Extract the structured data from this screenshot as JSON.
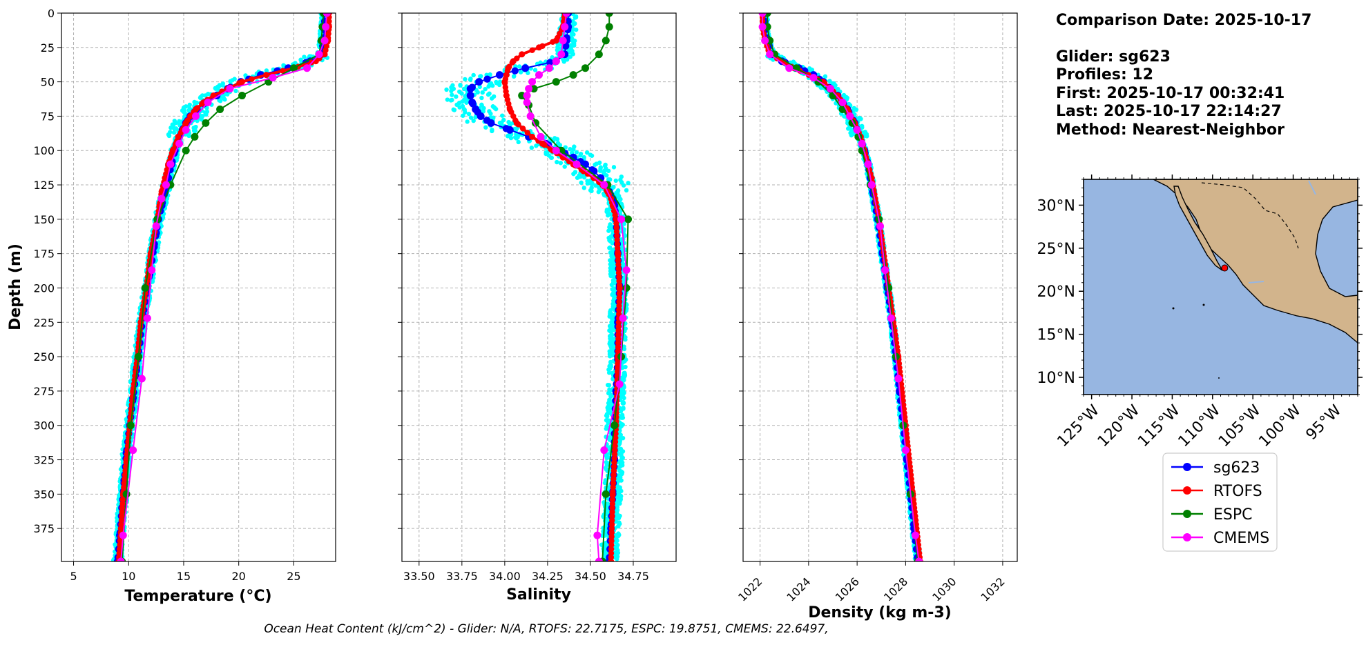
{
  "info": {
    "comparison_date": "Comparison Date: 2025-10-17",
    "glider": "Glider: sg623",
    "profiles": "Profiles: 12",
    "first": "First: 2025-10-17 00:32:41",
    "last": "Last: 2025-10-17 22:14:27",
    "method": "Method: Nearest-Neighbor"
  },
  "footer": "Ocean Heat Content (kJ/cm^2) - Glider: N/A,  RTOFS: 22.7175,  ESPC: 19.8751,  CMEMS: 22.6497,",
  "colors": {
    "sg623": "#0000ff",
    "RTOFS": "#ff0000",
    "ESPC": "#008000",
    "CMEMS": "#ff00ff",
    "raw": "#00ffff",
    "ocean": "#97b6e1",
    "land": "#d2b48c",
    "grid": "#b0b0b0"
  },
  "legend": [
    "sg623",
    "RTOFS",
    "ESPC",
    "CMEMS"
  ],
  "chart_data": [
    {
      "type": "line",
      "id": "temperature",
      "xlabel": "Temperature (°C)",
      "ylabel": "Depth (m)",
      "xlim": [
        3.9,
        28.8
      ],
      "ylim": [
        399,
        0
      ],
      "xticks": [
        "5",
        "10",
        "15",
        "20",
        "25"
      ],
      "xtick_values": [
        5,
        10,
        15,
        20,
        25
      ],
      "yticks": [
        "0",
        "25",
        "50",
        "75",
        "100",
        "125",
        "150",
        "175",
        "200",
        "225",
        "250",
        "275",
        "300",
        "325",
        "350",
        "375"
      ],
      "ytick_values": [
        0,
        25,
        50,
        75,
        100,
        125,
        150,
        175,
        200,
        225,
        250,
        275,
        300,
        325,
        350,
        375
      ],
      "series": [
        {
          "name": "sg623",
          "depth": [
            0,
            10,
            20,
            30,
            35,
            40,
            45,
            50,
            55,
            60,
            65,
            70,
            75,
            80,
            85,
            90,
            95,
            100,
            110,
            120,
            130,
            140,
            150,
            160,
            170,
            180,
            190,
            200,
            220,
            240,
            260,
            280,
            300,
            320,
            340,
            360,
            380,
            399
          ],
          "values": [
            27.8,
            27.8,
            27.7,
            27.5,
            26.5,
            24.5,
            22.0,
            20.2,
            19.0,
            18.0,
            17.0,
            16.2,
            15.6,
            15.2,
            14.9,
            14.6,
            14.4,
            14.2,
            13.9,
            13.6,
            13.3,
            13.0,
            12.7,
            12.5,
            12.3,
            12.1,
            11.9,
            11.7,
            11.3,
            11.0,
            10.7,
            10.4,
            10.1,
            9.8,
            9.6,
            9.4,
            9.2,
            9.0
          ]
        },
        {
          "name": "RTOFS",
          "depth": [
            0,
            10,
            20,
            30,
            35,
            40,
            45,
            50,
            55,
            60,
            65,
            70,
            75,
            80,
            85,
            90,
            95,
            100,
            110,
            120,
            130,
            140,
            150,
            175,
            200,
            225,
            250,
            275,
            300,
            325,
            350,
            375,
            399
          ],
          "values": [
            28.2,
            28.2,
            28.1,
            27.8,
            27.0,
            25.0,
            22.5,
            20.3,
            19.0,
            17.7,
            16.8,
            16.1,
            15.6,
            15.2,
            14.9,
            14.5,
            14.3,
            14.0,
            13.6,
            13.3,
            13.0,
            12.8,
            12.6,
            12.0,
            11.6,
            11.1,
            10.8,
            10.4,
            10.1,
            9.8,
            9.5,
            9.3,
            9.1
          ]
        },
        {
          "name": "ESPC",
          "depth": [
            0,
            10,
            20,
            30,
            40,
            50,
            60,
            70,
            80,
            90,
            100,
            125,
            150,
            200,
            250,
            300,
            350,
            399
          ],
          "values": [
            27.7,
            27.6,
            27.5,
            27.3,
            25.0,
            22.7,
            20.3,
            18.3,
            17.0,
            16.0,
            15.2,
            13.8,
            12.6,
            11.5,
            10.9,
            10.2,
            9.8,
            9.4
          ]
        },
        {
          "name": "CMEMS",
          "depth": [
            0,
            10,
            20,
            30,
            40,
            47,
            55,
            65,
            75,
            85,
            95,
            110,
            125,
            135,
            155,
            187,
            222,
            266,
            318,
            380,
            399
          ],
          "values": [
            28.0,
            27.9,
            27.8,
            27.3,
            26.2,
            23.1,
            19.2,
            17.2,
            16.1,
            15.2,
            14.6,
            13.8,
            13.4,
            13.0,
            12.5,
            12.1,
            11.7,
            11.2,
            10.4,
            9.5,
            9.3
          ]
        }
      ]
    },
    {
      "type": "line",
      "id": "salinity",
      "xlabel": "Salinity",
      "xlim": [
        33.4,
        35.0
      ],
      "ylim": [
        399,
        0
      ],
      "xticks": [
        "33.50",
        "33.75",
        "34.00",
        "34.25",
        "34.50",
        "34.75"
      ],
      "xtick_values": [
        33.5,
        33.75,
        34.0,
        34.25,
        34.5,
        34.75
      ],
      "series": [
        {
          "name": "sg623",
          "depth": [
            0,
            10,
            20,
            30,
            35,
            40,
            45,
            50,
            55,
            60,
            65,
            70,
            75,
            80,
            85,
            90,
            95,
            100,
            105,
            110,
            115,
            120,
            125,
            130,
            135,
            140,
            150,
            175,
            200,
            225,
            250,
            275,
            300,
            325,
            350,
            375,
            399
          ],
          "values": [
            34.37,
            34.37,
            34.36,
            34.35,
            34.3,
            34.12,
            33.97,
            33.85,
            33.8,
            33.8,
            33.81,
            33.83,
            33.86,
            33.92,
            34.03,
            34.14,
            34.24,
            34.32,
            34.4,
            34.47,
            34.52,
            34.56,
            34.59,
            34.61,
            34.63,
            34.64,
            34.65,
            34.66,
            34.67,
            34.66,
            34.66,
            34.65,
            34.64,
            34.64,
            34.63,
            34.62,
            34.61
          ]
        },
        {
          "name": "RTOFS",
          "depth": [
            0,
            10,
            20,
            25,
            30,
            35,
            40,
            45,
            50,
            60,
            70,
            80,
            90,
            95,
            100,
            105,
            110,
            115,
            120,
            125,
            130,
            135,
            140,
            150,
            175,
            200,
            250,
            300,
            350,
            399
          ],
          "values": [
            34.35,
            34.34,
            34.3,
            34.2,
            34.1,
            34.05,
            34.02,
            34.01,
            34.0,
            34.01,
            34.03,
            34.07,
            34.16,
            34.22,
            34.28,
            34.34,
            34.4,
            34.46,
            34.52,
            34.57,
            34.6,
            34.62,
            34.63,
            34.65,
            34.66,
            34.67,
            34.66,
            34.65,
            34.63,
            34.62
          ]
        },
        {
          "name": "ESPC",
          "depth": [
            0,
            10,
            20,
            30,
            40,
            45,
            50,
            55,
            60,
            67,
            80,
            100,
            125,
            150,
            200,
            250,
            300,
            350,
            399
          ],
          "values": [
            34.61,
            34.61,
            34.59,
            34.55,
            34.47,
            34.4,
            34.3,
            34.17,
            34.1,
            34.14,
            34.18,
            34.33,
            34.6,
            34.72,
            34.71,
            34.68,
            34.64,
            34.59,
            34.57
          ]
        },
        {
          "name": "CMEMS",
          "depth": [
            0,
            10,
            20,
            30,
            35,
            40,
            45,
            50,
            55,
            60,
            65,
            75,
            90,
            100,
            110,
            125,
            150,
            187,
            222,
            270,
            318,
            380,
            399
          ],
          "values": [
            34.36,
            34.35,
            34.34,
            34.33,
            34.3,
            34.26,
            34.2,
            34.16,
            34.14,
            34.13,
            34.13,
            34.15,
            34.21,
            34.3,
            34.42,
            34.58,
            34.68,
            34.71,
            34.69,
            34.67,
            34.58,
            34.54,
            34.55
          ]
        }
      ]
    },
    {
      "type": "line",
      "id": "density",
      "xlabel": "Density (kg m-3)",
      "xlim": [
        1021.3,
        1032.6
      ],
      "ylim": [
        399,
        0
      ],
      "xticks": [
        "1022",
        "1024",
        "1026",
        "1028",
        "1030",
        "1032"
      ],
      "xtick_values": [
        1022,
        1024,
        1026,
        1028,
        1030,
        1032
      ],
      "series": [
        {
          "name": "sg623",
          "depth": [
            0,
            10,
            20,
            30,
            35,
            40,
            45,
            50,
            55,
            60,
            70,
            80,
            90,
            100,
            110,
            120,
            130,
            150,
            175,
            200,
            225,
            250,
            275,
            300,
            325,
            350,
            375,
            399
          ],
          "values": [
            1022.2,
            1022.2,
            1022.3,
            1022.5,
            1022.9,
            1023.6,
            1024.2,
            1024.6,
            1024.9,
            1025.2,
            1025.6,
            1025.9,
            1026.1,
            1026.3,
            1026.45,
            1026.55,
            1026.65,
            1026.85,
            1027.05,
            1027.25,
            1027.45,
            1027.6,
            1027.75,
            1027.9,
            1028.05,
            1028.2,
            1028.35,
            1028.5
          ]
        },
        {
          "name": "RTOFS",
          "depth": [
            0,
            10,
            20,
            30,
            40,
            50,
            60,
            70,
            80,
            90,
            100,
            120,
            150,
            200,
            250,
            300,
            350,
            399
          ],
          "values": [
            1022.1,
            1022.1,
            1022.2,
            1022.4,
            1023.4,
            1024.6,
            1025.2,
            1025.6,
            1025.9,
            1026.15,
            1026.3,
            1026.6,
            1026.9,
            1027.3,
            1027.7,
            1028.0,
            1028.3,
            1028.6
          ]
        },
        {
          "name": "ESPC",
          "depth": [
            0,
            10,
            20,
            30,
            40,
            50,
            60,
            70,
            80,
            90,
            100,
            125,
            150,
            200,
            250,
            300,
            350,
            399
          ],
          "values": [
            1022.3,
            1022.3,
            1022.4,
            1022.6,
            1023.5,
            1024.4,
            1025.0,
            1025.4,
            1025.8,
            1026.05,
            1026.2,
            1026.55,
            1026.9,
            1027.3,
            1027.6,
            1027.9,
            1028.2,
            1028.5
          ]
        },
        {
          "name": "CMEMS",
          "depth": [
            0,
            10,
            20,
            30,
            40,
            47,
            55,
            65,
            75,
            85,
            95,
            110,
            125,
            155,
            187,
            222,
            266,
            318,
            380,
            399
          ],
          "values": [
            1022.1,
            1022.1,
            1022.2,
            1022.4,
            1023.2,
            1024.2,
            1024.9,
            1025.4,
            1025.7,
            1026.0,
            1026.2,
            1026.45,
            1026.6,
            1026.95,
            1027.15,
            1027.4,
            1027.7,
            1028.0,
            1028.4,
            1028.55
          ]
        }
      ]
    },
    {
      "type": "map",
      "id": "location_map",
      "xticks": [
        "125°W",
        "120°W",
        "115°W",
        "110°W",
        "105°W",
        "100°W",
        "95°W"
      ],
      "xtick_values": [
        -125,
        -120,
        -115,
        -110,
        -105,
        -100,
        -95
      ],
      "yticks": [
        "30°N",
        "25°N",
        "20°N",
        "15°N",
        "10°N"
      ],
      "ytick_values": [
        30,
        25,
        20,
        15,
        10
      ],
      "lon_range": [
        -126,
        -92
      ],
      "lat_range": [
        8,
        33
      ],
      "glider_position": {
        "lon": -108.5,
        "lat": 22.7
      }
    }
  ]
}
